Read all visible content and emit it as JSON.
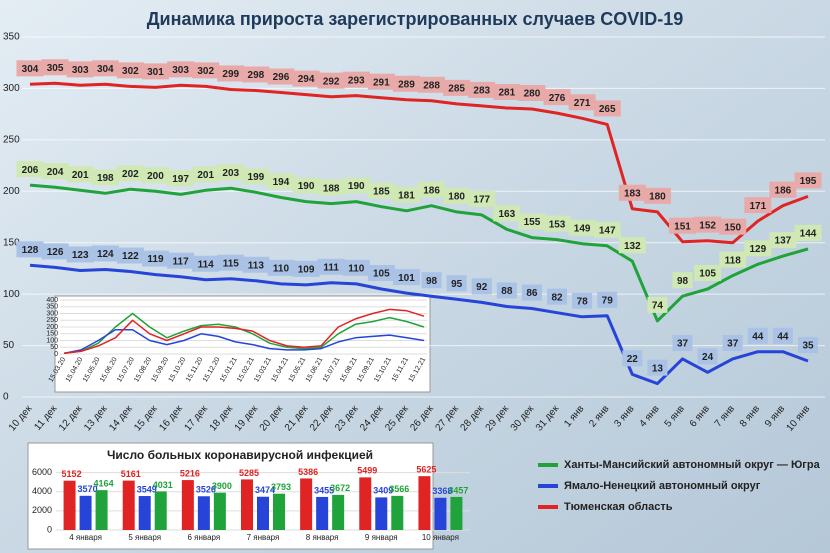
{
  "chart_data": [
    {
      "type": "line",
      "title": "Динамика прироста зарегистрированных случаев COVID-19",
      "categories": [
        "10 дек",
        "11 дек",
        "12 дек",
        "13 дек",
        "14 дек",
        "15 дек",
        "16 дек",
        "17 дек",
        "18 дек",
        "19 дек",
        "20 дек",
        "21 дек",
        "22 дек",
        "23 дек",
        "24 дек",
        "25 дек",
        "26 дек",
        "27 дек",
        "28 дек",
        "29 дек",
        "30 дек",
        "31 дек",
        "1 янв",
        "2 янв",
        "3 янв",
        "4 янв",
        "5 янв",
        "6 янв",
        "7 янв",
        "8 янв",
        "9 янв",
        "10 янв"
      ],
      "series": [
        {
          "name": "Ханты-Мансийский автономный округ — Югра",
          "color": "#1fa33a",
          "label_color": "#cfe8b4",
          "values": [
            206,
            204,
            201,
            198,
            202,
            200,
            197,
            201,
            203,
            199,
            194,
            190,
            188,
            190,
            185,
            181,
            186,
            180,
            177,
            163,
            155,
            153,
            149,
            147,
            132,
            74,
            98,
            105,
            118,
            129,
            137,
            144
          ]
        },
        {
          "name": "Ямало-Ненецкий автономный округ",
          "color": "#2645d8",
          "label_color": "#a9c2e6",
          "values": [
            128,
            126,
            123,
            124,
            122,
            119,
            117,
            114,
            115,
            113,
            110,
            109,
            111,
            110,
            105,
            101,
            98,
            95,
            92,
            88,
            86,
            82,
            78,
            79,
            22,
            13,
            37,
            24,
            37,
            44,
            44,
            35
          ]
        },
        {
          "name": "Тюменская область",
          "color": "#e02424",
          "label_color": "#e8a9a9",
          "values": [
            304,
            305,
            303,
            304,
            302,
            301,
            303,
            302,
            299,
            298,
            296,
            294,
            292,
            293,
            291,
            289,
            288,
            285,
            283,
            281,
            280,
            276,
            271,
            265,
            183,
            180,
            151,
            152,
            150,
            171,
            186,
            195
          ]
        }
      ],
      "ylim": [
        0,
        350
      ],
      "yticks": [
        0,
        50,
        100,
        150,
        200,
        250,
        300,
        350
      ],
      "grid": true,
      "data_labels": true,
      "legend": "lower right"
    },
    {
      "type": "line",
      "categories": [
        "15.03.20",
        "15.04.20",
        "15.05.20",
        "15.06.20",
        "15.07.20",
        "15.08.20",
        "15.09.20",
        "15.10.20",
        "15.11.20",
        "15.12.20",
        "15.01.21",
        "15.02.21",
        "15.03.21",
        "15.04.21",
        "15.05.21",
        "15.06.21",
        "15.07.21",
        "15.08.21",
        "15.09.21",
        "15.10.21",
        "15.11.21",
        "15.12.21"
      ],
      "series": [
        {
          "color": "#1fa33a",
          "values": [
            5,
            20,
            80,
            200,
            300,
            200,
            120,
            170,
            210,
            220,
            200,
            150,
            80,
            50,
            40,
            50,
            150,
            220,
            240,
            270,
            240,
            200
          ]
        },
        {
          "color": "#2645d8",
          "values": [
            5,
            30,
            100,
            180,
            180,
            100,
            70,
            100,
            150,
            130,
            90,
            70,
            40,
            30,
            30,
            40,
            90,
            120,
            130,
            140,
            120,
            100
          ]
        },
        {
          "color": "#e02424",
          "values": [
            5,
            20,
            60,
            120,
            250,
            150,
            100,
            150,
            200,
            200,
            190,
            170,
            100,
            60,
            50,
            60,
            200,
            260,
            300,
            330,
            320,
            280
          ]
        }
      ],
      "ylim": [
        0,
        400
      ],
      "yticks": [
        0,
        50,
        100,
        150,
        200,
        250,
        300,
        350,
        400
      ],
      "grid": true
    },
    {
      "type": "bar",
      "title": "Число больных коронавирусной  инфекцией",
      "categories": [
        "4 января",
        "5 января",
        "6 января",
        "7 января",
        "8 января",
        "9 января",
        "10 января"
      ],
      "series": [
        {
          "color": "#e02424",
          "values": [
            5152,
            5161,
            5216,
            5285,
            5386,
            5499,
            5625
          ]
        },
        {
          "color": "#2645d8",
          "values": [
            3570,
            3549,
            3526,
            3474,
            3455,
            3409,
            3368
          ]
        },
        {
          "color": "#1fa33a",
          "values": [
            4164,
            4031,
            3900,
            3793,
            3672,
            3566,
            3457
          ]
        }
      ],
      "ylim": [
        0,
        7000
      ],
      "yticks": [
        0,
        2000,
        4000,
        6000
      ],
      "grid": true,
      "data_labels": true
    }
  ]
}
